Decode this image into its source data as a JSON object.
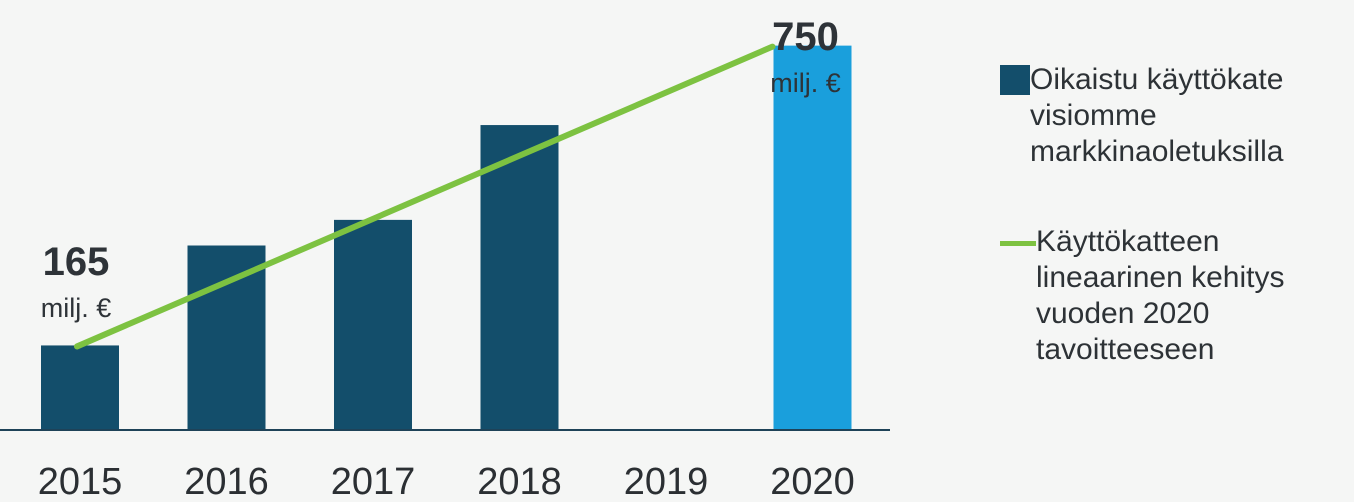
{
  "chart_data": {
    "type": "bar",
    "categories": [
      "2015",
      "2016",
      "2017",
      "2018",
      "2019",
      "2020"
    ],
    "series": [
      {
        "name": "Oikaistu käyttökate visiomme markkinaoletuksilla",
        "values": [
          165,
          360,
          410,
          595,
          null,
          750
        ],
        "colors": [
          "#134e6b",
          "#134e6b",
          "#134e6b",
          "#134e6b",
          "#134e6b",
          "#1a9fdc"
        ]
      }
    ],
    "trend": {
      "name": "Käyttökatteen lineaarinen kehitys vuoden 2020 tavoitteeseen",
      "start": {
        "x": "2015",
        "y": 165
      },
      "end": {
        "x": "2020",
        "y": 750
      },
      "color": "#7dc241"
    },
    "annotations": [
      {
        "category": "2015",
        "value": "165",
        "unit": "milj. €"
      },
      {
        "category": "2020",
        "value": "750",
        "unit": "milj. €"
      }
    ],
    "ylim": [
      0,
      800
    ],
    "grid": false,
    "legend_position": "right"
  }
}
